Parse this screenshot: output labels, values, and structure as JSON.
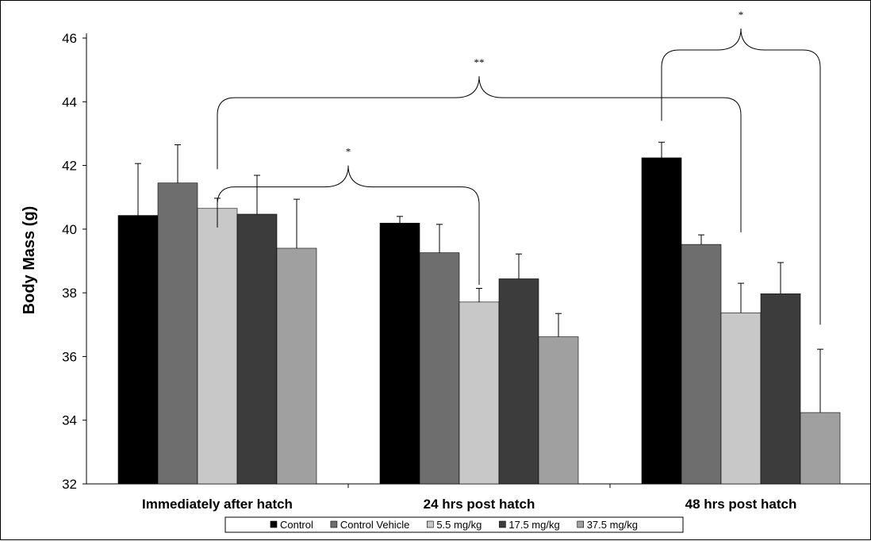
{
  "chart_data": {
    "type": "bar",
    "ylabel": "Body Mass (g)",
    "xlabel": "",
    "ylim": [
      32,
      46
    ],
    "yticks": [
      32,
      34,
      36,
      38,
      40,
      42,
      44,
      46
    ],
    "categories": [
      "Immediately after hatch",
      "24 hrs post hatch",
      "48 hrs post hatch"
    ],
    "series": [
      {
        "name": "Control",
        "color": "#000000",
        "values": [
          40.43,
          40.19,
          42.24
        ],
        "errors": [
          1.63,
          0.21,
          0.49
        ]
      },
      {
        "name": "Control Vehicle",
        "color": "#6e6e6e",
        "values": [
          41.45,
          39.26,
          39.52
        ],
        "errors": [
          1.2,
          0.89,
          0.3
        ]
      },
      {
        "name": "5.5 mg/kg",
        "color": "#c8c8c8",
        "values": [
          40.65,
          37.71,
          37.37
        ],
        "errors": [
          0.32,
          0.43,
          0.93
        ]
      },
      {
        "name": "17.5 mg/kg",
        "color": "#3c3c3c",
        "values": [
          40.47,
          38.44,
          37.97
        ],
        "errors": [
          1.22,
          0.78,
          0.98
        ]
      },
      {
        "name": "37.5 mg/kg",
        "color": "#a0a0a0",
        "values": [
          39.4,
          36.62,
          34.24
        ],
        "errors": [
          1.54,
          0.73,
          1.99
        ]
      }
    ],
    "annotations": [
      {
        "text": "*",
        "left_cat": 0,
        "left_series": 2,
        "right_cat": 1,
        "right_series": 2,
        "y_top": 42.0,
        "left_y": 40.05,
        "right_y": 38.25
      },
      {
        "text": "**",
        "left_cat": 0,
        "left_series": 2,
        "right_cat": 2,
        "right_series": 2,
        "y_top": 44.8,
        "left_y": 41.88,
        "right_y": 39.9
      },
      {
        "text": "*",
        "left_cat": 2,
        "left_series": 0,
        "right_cat": 2,
        "right_series": 4,
        "y_top": 46.3,
        "left_y": 43.4,
        "right_y": 37.0
      }
    ],
    "legend_position": "bottom",
    "grid": false
  }
}
